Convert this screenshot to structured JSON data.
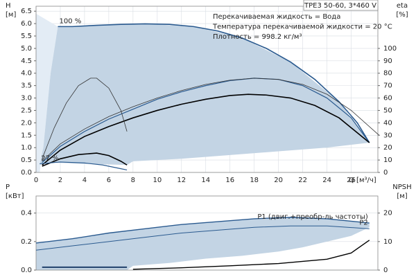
{
  "chart_data": [
    {
      "type": "line",
      "title": "TPE3 50-60, 3*460 V",
      "annotations": [
        "Перекачиваемая жидкость = Вода",
        "Температура перекачиваемой жидкости = 20 °C",
        "Плотность = 998.2 кг/м³"
      ],
      "ylabel": "H",
      "yunit": "[м]",
      "y2label": "eta",
      "y2unit": "[%]",
      "xlabel": "Q [м³/ч]",
      "xlim": [
        0,
        28.2
      ],
      "xticks": [
        0,
        2,
        4,
        6,
        8,
        10,
        12,
        14,
        16,
        18,
        20,
        22,
        24,
        26
      ],
      "ylim": [
        0,
        6.7
      ],
      "yticks": [
        {
          "value": 0,
          "label": "0.0"
        },
        0.5,
        {
          "value": 1,
          "label": "1.0"
        },
        1.5,
        {
          "value": 2,
          "label": "2.0"
        },
        2.5,
        {
          "value": 3,
          "label": "3.0"
        },
        3.5,
        {
          "value": 4,
          "label": "4.0"
        },
        4.5,
        {
          "value": 5,
          "label": "5.0"
        },
        5.5,
        {
          "value": 6,
          "label": "6.0"
        },
        6.5
      ],
      "y2lim": [
        0,
        134
      ],
      "y2ticks": [
        0,
        10,
        20,
        30,
        40,
        50,
        60,
        70,
        80,
        90,
        100
      ],
      "grid": true,
      "regions": [
        {
          "color": "#e3ecf5",
          "x": [
            0,
            0,
            1.8,
            1.2,
            0.6,
            0.3
          ],
          "values": [
            0,
            6.4,
            5.88,
            4,
            1,
            0
          ]
        },
        {
          "color": "#c3d4e4",
          "x": [
            1.8,
            5,
            9,
            13,
            17,
            21,
            25,
            27.5,
            24,
            20,
            16,
            12,
            8,
            7.5,
            4,
            1,
            0.3,
            0.6,
            1.2
          ],
          "values": [
            5.88,
            5.93,
            5.99,
            5.88,
            5.42,
            4.45,
            2.85,
            1.2,
            1.0,
            0.85,
            0.7,
            0.55,
            0.45,
            0.3,
            0.35,
            0.4,
            0.3,
            1,
            4
          ]
        }
      ],
      "series": [
        {
          "name": "100 %",
          "color": "#2a5a8f",
          "width": 1.6,
          "x": [
            1.8,
            3,
            5,
            7,
            9,
            11,
            13,
            15,
            17,
            19,
            21,
            23,
            25,
            26.5,
            27.5
          ],
          "values": [
            5.88,
            5.88,
            5.93,
            5.97,
            5.99,
            5.97,
            5.88,
            5.7,
            5.42,
            5.0,
            4.45,
            3.75,
            2.85,
            2.0,
            1.2
          ]
        },
        {
          "color": "#2a5a8f",
          "width": 1.2,
          "x": [
            0.5,
            2,
            4,
            6,
            8,
            10,
            12,
            14,
            16,
            18,
            20,
            22,
            24,
            26,
            27.5
          ],
          "values": [
            0.4,
            1.05,
            1.65,
            2.15,
            2.55,
            2.95,
            3.25,
            3.5,
            3.7,
            3.8,
            3.75,
            3.5,
            3.0,
            2.2,
            1.2
          ]
        },
        {
          "color": "#333333",
          "width": 0.8,
          "x": [
            0.5,
            2,
            4,
            6,
            8,
            10,
            12,
            14,
            16,
            18,
            20,
            22,
            24,
            26,
            28.3
          ],
          "values": [
            0.45,
            1.15,
            1.75,
            2.25,
            2.65,
            3.0,
            3.3,
            3.55,
            3.72,
            3.8,
            3.75,
            3.55,
            3.15,
            2.5,
            1.5
          ]
        },
        {
          "color": "#000000",
          "width": 1.6,
          "x": [
            0.5,
            2,
            4,
            6,
            8,
            10,
            12,
            14,
            16,
            17.5,
            19,
            21,
            23,
            25,
            27.5
          ],
          "values": [
            0.3,
            0.9,
            1.45,
            1.85,
            2.2,
            2.5,
            2.75,
            2.95,
            3.1,
            3.15,
            3.12,
            3.0,
            2.7,
            2.2,
            1.2
          ]
        },
        {
          "color": "#333333",
          "width": 0.8,
          "x": [
            0.5,
            1.5,
            2.5,
            3.5,
            4.5,
            5,
            6,
            7,
            7.5
          ],
          "values": [
            0.55,
            1.8,
            2.8,
            3.5,
            3.8,
            3.8,
            3.4,
            2.5,
            1.65
          ]
        },
        {
          "color": "#000000",
          "width": 1.6,
          "x": [
            0.5,
            2,
            3.5,
            5,
            6,
            7,
            7.5
          ],
          "values": [
            0.25,
            0.55,
            0.72,
            0.78,
            0.68,
            0.45,
            0.3
          ]
        },
        {
          "name": "27 %",
          "color": "#2a5a8f",
          "width": 1.2,
          "x": [
            0.3,
            2,
            4,
            5.5,
            7,
            7.5
          ],
          "values": [
            0.35,
            0.42,
            0.38,
            0.3,
            0.15,
            0.1
          ]
        }
      ]
    },
    {
      "type": "line",
      "ylabel": "P",
      "yunit": "[кВт]",
      "y2label": "NPSH",
      "y2unit": "[м]",
      "xlim": [
        0,
        28.2
      ],
      "ylim": [
        0,
        0.52
      ],
      "yticks": [
        {
          "value": 0,
          "label": "0.0"
        },
        0.2,
        0.4
      ],
      "y2lim": [
        0,
        26
      ],
      "y2ticks": [
        0,
        10,
        20
      ],
      "grid": true,
      "regions": [
        {
          "color": "#c3d4e4",
          "x": [
            0,
            3,
            6,
            9,
            12,
            15,
            18,
            21,
            24,
            27.5,
            27.5,
            26,
            24,
            22,
            20,
            17,
            14,
            11,
            8,
            7.5,
            0
          ],
          "values": [
            0.19,
            0.22,
            0.26,
            0.29,
            0.32,
            0.34,
            0.36,
            0.37,
            0.36,
            0.33,
            0.3,
            0.24,
            0.2,
            0.16,
            0.13,
            0.1,
            0.08,
            0.05,
            0.03,
            0,
            0
          ]
        }
      ],
      "series": [
        {
          "name": "P1 (двиг.+преобр-ль частоты)",
          "color": "#2a5a8f",
          "width": 1.4,
          "x": [
            0,
            3,
            6,
            9,
            12,
            15,
            18,
            21,
            24,
            27.5
          ],
          "values": [
            0.19,
            0.22,
            0.26,
            0.29,
            0.32,
            0.34,
            0.36,
            0.37,
            0.36,
            0.33
          ]
        },
        {
          "name": "P2",
          "color": "#2a5a8f",
          "width": 1,
          "x": [
            0,
            3,
            6,
            9,
            12,
            15,
            18,
            21,
            24,
            27.5
          ],
          "values": [
            0.14,
            0.17,
            0.2,
            0.23,
            0.26,
            0.28,
            0.3,
            0.31,
            0.31,
            0.29
          ]
        },
        {
          "color": "#000000",
          "width": 1.4,
          "axis": "y2",
          "x": [
            8,
            12,
            16,
            20,
            24,
            26,
            27.5
          ],
          "values": [
            0.3,
            0.8,
            1.5,
            2.3,
            3.8,
            6,
            10.5
          ]
        },
        {
          "color": "#1f3f6a",
          "width": 2,
          "x": [
            0.5,
            7.5
          ],
          "values": [
            0.02,
            0.02
          ]
        }
      ]
    }
  ]
}
